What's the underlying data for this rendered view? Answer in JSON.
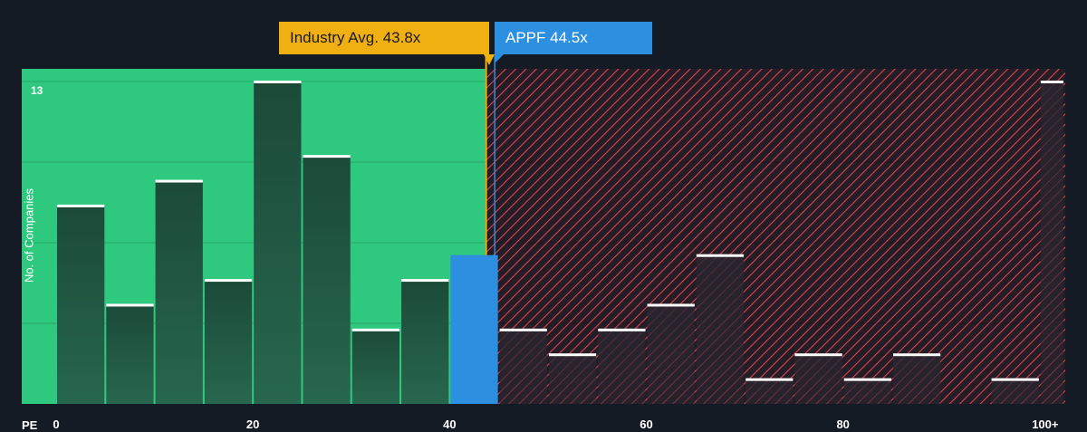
{
  "chart_data": {
    "type": "bar",
    "xlabel": "PE",
    "ylabel": "No. of Companies",
    "ylim": [
      0,
      13
    ],
    "ymax_label": "13",
    "x_ticks": [
      "0",
      "20",
      "40",
      "60",
      "80",
      "100+"
    ],
    "bins": [
      {
        "start": 0,
        "end": 5,
        "count": 8
      },
      {
        "start": 5,
        "end": 10,
        "count": 4
      },
      {
        "start": 10,
        "end": 15,
        "count": 9
      },
      {
        "start": 15,
        "end": 20,
        "count": 5
      },
      {
        "start": 20,
        "end": 25,
        "count": 13
      },
      {
        "start": 25,
        "end": 30,
        "count": 10
      },
      {
        "start": 30,
        "end": 35,
        "count": 3
      },
      {
        "start": 35,
        "end": 40,
        "count": 5
      },
      {
        "start": 40,
        "end": 45,
        "count": 6
      },
      {
        "start": 45,
        "end": 50,
        "count": 3
      },
      {
        "start": 50,
        "end": 55,
        "count": 2
      },
      {
        "start": 55,
        "end": 60,
        "count": 3
      },
      {
        "start": 60,
        "end": 65,
        "count": 4
      },
      {
        "start": 65,
        "end": 70,
        "count": 6
      },
      {
        "start": 70,
        "end": 75,
        "count": 1
      },
      {
        "start": 75,
        "end": 80,
        "count": 2
      },
      {
        "start": 80,
        "end": 85,
        "count": 1
      },
      {
        "start": 85,
        "end": 90,
        "count": 2
      },
      {
        "start": 90,
        "end": 95,
        "count": 0
      },
      {
        "start": 95,
        "end": 100,
        "count": 1
      },
      {
        "start": 100,
        "end": 105,
        "count": 13
      }
    ],
    "industry_avg": {
      "label": "Industry Avg. 43.8x",
      "value": 43.8
    },
    "company": {
      "label": "APPF 44.5x",
      "value": 44.5
    },
    "colors": {
      "background": "#151b24",
      "fair_zone": "#2ec87e",
      "over_zone": "#e0414a",
      "bar_fill": "#1e4a3a",
      "bar_top": "#ffffff",
      "highlight_bar": "#2d8fe0",
      "industry_marker": "#f0b012",
      "company_marker": "#2d8fe0"
    }
  }
}
